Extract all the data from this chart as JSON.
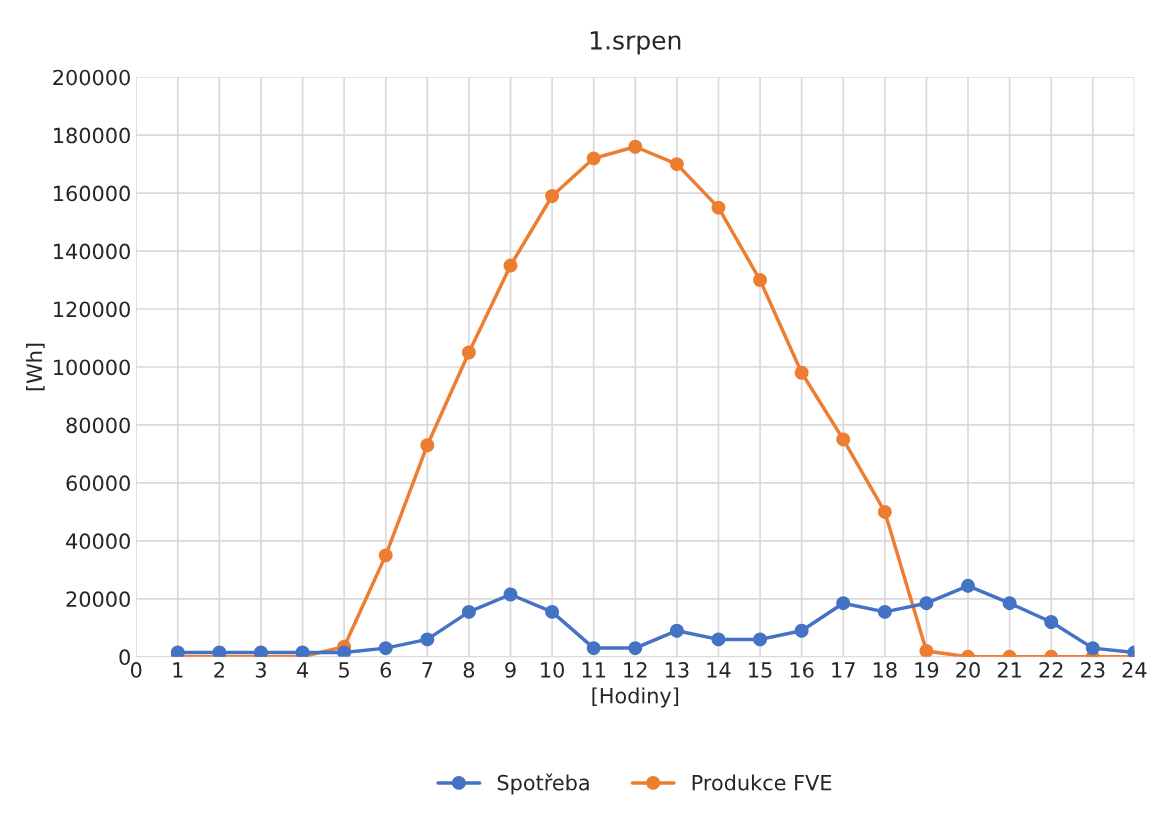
{
  "chart_data": {
    "type": "line",
    "title": "1.srpen",
    "xlabel": "[Hodiny]",
    "ylabel": "[Wh]",
    "x": [
      1,
      2,
      3,
      4,
      5,
      6,
      7,
      8,
      9,
      10,
      11,
      12,
      13,
      14,
      15,
      16,
      17,
      18,
      19,
      20,
      21,
      22,
      23,
      24
    ],
    "series": [
      {
        "name": "Spotřeba",
        "color": "#4472c4",
        "values": [
          1500,
          1500,
          1500,
          1500,
          1500,
          3000,
          6000,
          15500,
          21500,
          15500,
          3000,
          3000,
          9000,
          6000,
          6000,
          9000,
          18500,
          15500,
          18500,
          24500,
          18500,
          12000,
          3000,
          1500
        ]
      },
      {
        "name": "Produkce FVE",
        "color": "#ed7d31",
        "values": [
          0,
          0,
          0,
          0,
          3500,
          35000,
          73000,
          105000,
          135000,
          159000,
          172000,
          176000,
          170000,
          155000,
          130000,
          98000,
          75000,
          50000,
          2000,
          0,
          0,
          0,
          0,
          0
        ]
      }
    ],
    "xlim": [
      0,
      24
    ],
    "xticks": [
      0,
      1,
      2,
      3,
      4,
      5,
      6,
      7,
      8,
      9,
      10,
      11,
      12,
      13,
      14,
      15,
      16,
      17,
      18,
      19,
      20,
      21,
      22,
      23,
      24
    ],
    "ylim": [
      0,
      200000
    ],
    "yticks": [
      0,
      20000,
      40000,
      60000,
      80000,
      100000,
      120000,
      140000,
      160000,
      180000,
      200000
    ],
    "grid": true,
    "legend": "bottom",
    "marker": "circle",
    "line_style": "solid"
  }
}
